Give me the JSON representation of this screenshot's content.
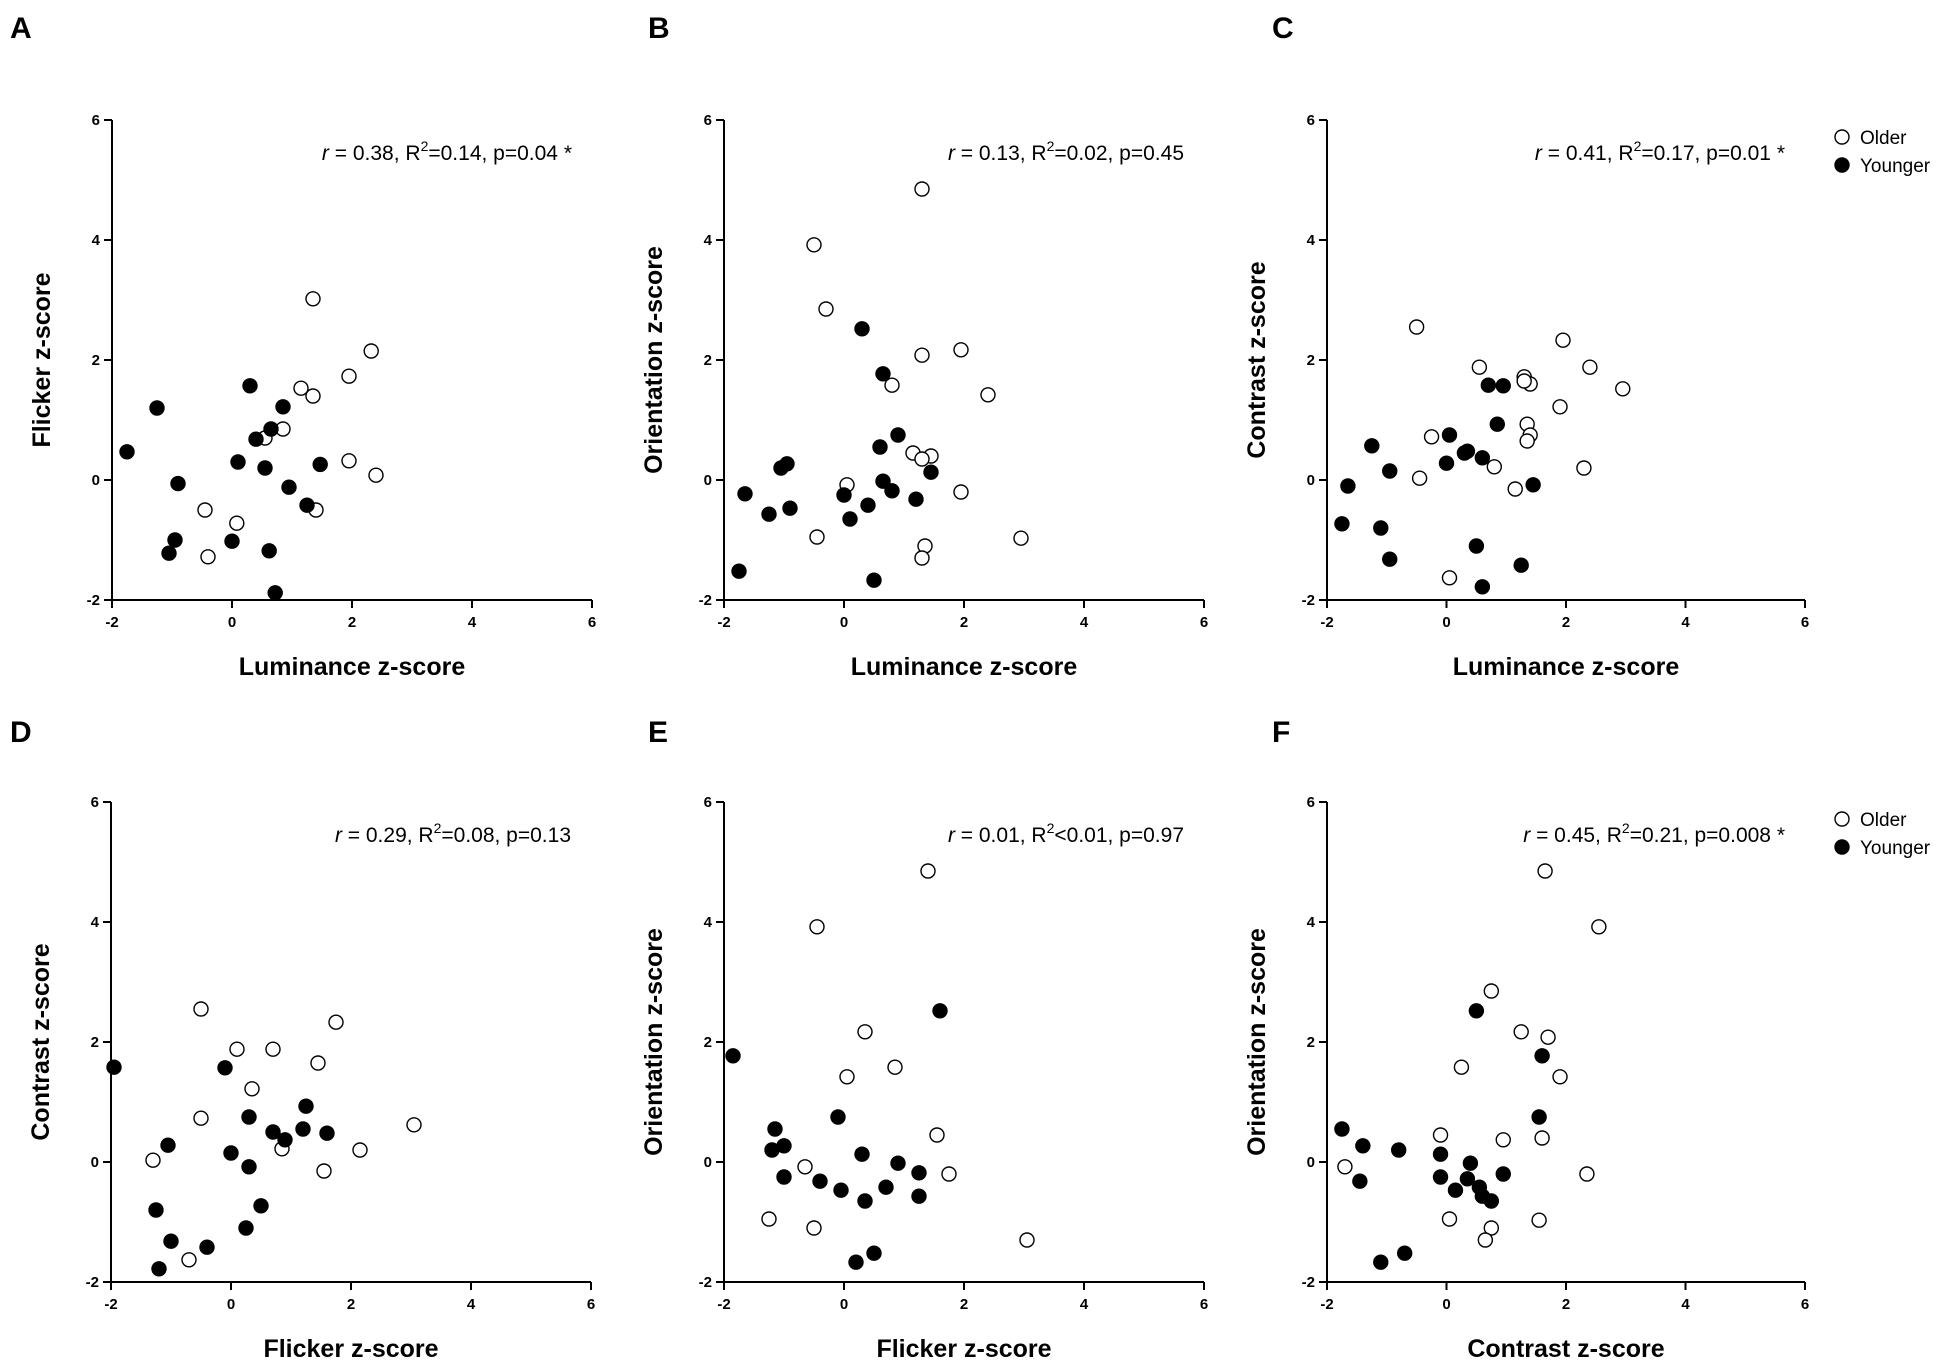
{
  "chart_data": [
    {
      "type": "scatter",
      "label": "A",
      "xlabel": "Luminance z-score",
      "ylabel": "Flicker z-score",
      "xlim": [
        -2,
        6
      ],
      "ylim": [
        -2,
        6
      ],
      "xticks": [
        -2,
        0,
        2,
        4,
        6
      ],
      "yticks": [
        -2,
        0,
        2,
        4,
        6
      ],
      "stats": {
        "r": "r",
        "text": " = 0.38, R",
        "sup": "2",
        "text2": "=0.14, p=0.04 *"
      },
      "legend": null,
      "series": [
        {
          "name": "Older",
          "points": [
            [
              1.35,
              3.02
            ],
            [
              2.32,
              2.15
            ],
            [
              1.95,
              1.73
            ],
            [
              1.15,
              1.53
            ],
            [
              1.35,
              1.4
            ],
            [
              0.85,
              0.85
            ],
            [
              0.55,
              0.7
            ],
            [
              1.95,
              0.32
            ],
            [
              2.4,
              0.08
            ],
            [
              -0.45,
              -0.5
            ],
            [
              0.08,
              -0.72
            ],
            [
              1.4,
              -0.5
            ],
            [
              -0.4,
              -1.28
            ]
          ]
        },
        {
          "name": "Younger",
          "points": [
            [
              -1.25,
              1.2
            ],
            [
              -1.75,
              0.47
            ],
            [
              0.3,
              1.57
            ],
            [
              0.85,
              1.22
            ],
            [
              0.65,
              0.85
            ],
            [
              0.4,
              0.68
            ],
            [
              0.1,
              0.3
            ],
            [
              0.55,
              0.2
            ],
            [
              1.47,
              0.26
            ],
            [
              -0.9,
              -0.06
            ],
            [
              0.95,
              -0.12
            ],
            [
              1.25,
              -0.42
            ],
            [
              -0.95,
              -1.0
            ],
            [
              0.0,
              -1.02
            ],
            [
              -1.05,
              -1.22
            ],
            [
              0.62,
              -1.18
            ],
            [
              0.72,
              -1.88
            ]
          ]
        }
      ]
    },
    {
      "type": "scatter",
      "label": "B",
      "xlabel": "Luminance z-score",
      "ylabel": "Orientation z-score",
      "xlim": [
        -2,
        6
      ],
      "ylim": [
        -2,
        6
      ],
      "xticks": [
        -2,
        0,
        2,
        4,
        6
      ],
      "yticks": [
        -2,
        0,
        2,
        4,
        6
      ],
      "stats": {
        "r": "r",
        "text": " = 0.13, R",
        "sup": "2",
        "text2": "=0.02, p=0.45"
      },
      "legend": null,
      "series": [
        {
          "name": "Older",
          "points": [
            [
              1.3,
              4.85
            ],
            [
              -0.5,
              3.92
            ],
            [
              -0.3,
              2.85
            ],
            [
              1.95,
              2.17
            ],
            [
              1.3,
              2.08
            ],
            [
              0.8,
              1.58
            ],
            [
              2.4,
              1.42
            ],
            [
              1.15,
              0.45
            ],
            [
              1.45,
              0.4
            ],
            [
              1.3,
              0.35
            ],
            [
              0.05,
              -0.08
            ],
            [
              1.95,
              -0.2
            ],
            [
              -0.45,
              -0.95
            ],
            [
              1.35,
              -1.1
            ],
            [
              1.3,
              -1.3
            ],
            [
              2.95,
              -0.97
            ]
          ]
        },
        {
          "name": "Younger",
          "points": [
            [
              0.3,
              2.52
            ],
            [
              0.65,
              1.77
            ],
            [
              0.9,
              0.75
            ],
            [
              0.6,
              0.55
            ],
            [
              -0.95,
              0.27
            ],
            [
              -1.05,
              0.2
            ],
            [
              0.65,
              -0.02
            ],
            [
              0.8,
              -0.18
            ],
            [
              0.0,
              -0.25
            ],
            [
              -1.65,
              -0.23
            ],
            [
              0.4,
              -0.42
            ],
            [
              1.2,
              -0.32
            ],
            [
              1.45,
              0.13
            ],
            [
              -0.9,
              -0.47
            ],
            [
              -1.25,
              -0.57
            ],
            [
              0.1,
              -0.65
            ],
            [
              -1.75,
              -1.52
            ],
            [
              0.5,
              -1.67
            ]
          ]
        }
      ]
    },
    {
      "type": "scatter",
      "label": "C",
      "xlabel": "Luminance z-score",
      "ylabel": "Contrast z-score",
      "xlim": [
        -2,
        6
      ],
      "ylim": [
        -2,
        6
      ],
      "xticks": [
        -2,
        0,
        2,
        4,
        6
      ],
      "yticks": [
        -2,
        0,
        2,
        4,
        6
      ],
      "stats": {
        "r": "r",
        "text": " = 0.41, R",
        "sup": "2",
        "text2": "=0.17, p=0.01 *"
      },
      "legend": [
        "Older",
        "Younger"
      ],
      "series": [
        {
          "name": "Older",
          "points": [
            [
              -0.5,
              2.55
            ],
            [
              1.95,
              2.33
            ],
            [
              2.4,
              1.88
            ],
            [
              0.55,
              1.88
            ],
            [
              1.3,
              1.72
            ],
            [
              1.4,
              1.6
            ],
            [
              1.3,
              1.65
            ],
            [
              2.95,
              1.52
            ],
            [
              1.9,
              1.22
            ],
            [
              1.35,
              0.93
            ],
            [
              1.4,
              0.75
            ],
            [
              1.35,
              0.65
            ],
            [
              -0.25,
              0.72
            ],
            [
              -0.45,
              0.03
            ],
            [
              0.8,
              0.22
            ],
            [
              2.3,
              0.2
            ],
            [
              1.15,
              -0.15
            ],
            [
              0.05,
              -1.63
            ]
          ]
        },
        {
          "name": "Younger",
          "points": [
            [
              0.7,
              1.58
            ],
            [
              0.95,
              1.57
            ],
            [
              0.85,
              0.93
            ],
            [
              0.05,
              0.75
            ],
            [
              -1.25,
              0.57
            ],
            [
              0.35,
              0.48
            ],
            [
              0.3,
              0.45
            ],
            [
              0.6,
              0.37
            ],
            [
              0.0,
              0.28
            ],
            [
              -0.95,
              0.15
            ],
            [
              -1.65,
              -0.1
            ],
            [
              1.45,
              -0.08
            ],
            [
              -1.75,
              -0.73
            ],
            [
              -1.1,
              -0.8
            ],
            [
              -0.95,
              -1.32
            ],
            [
              0.5,
              -1.1
            ],
            [
              1.25,
              -1.42
            ],
            [
              0.6,
              -1.78
            ]
          ]
        }
      ]
    },
    {
      "type": "scatter",
      "label": "D",
      "xlabel": "Flicker z-score",
      "ylabel": "Contrast z-score",
      "xlim": [
        -2,
        6
      ],
      "ylim": [
        -2,
        6
      ],
      "xticks": [
        -2,
        0,
        2,
        4,
        6
      ],
      "yticks": [
        -2,
        0,
        2,
        4,
        6
      ],
      "stats": {
        "r": "r",
        "text": " = 0.29, R",
        "sup": "2",
        "text2": "=0.08, p=0.13"
      },
      "legend": null,
      "series": [
        {
          "name": "Older",
          "points": [
            [
              -0.5,
              2.55
            ],
            [
              1.75,
              2.33
            ],
            [
              0.1,
              1.88
            ],
            [
              0.7,
              1.88
            ],
            [
              1.45,
              1.65
            ],
            [
              0.35,
              1.22
            ],
            [
              -0.5,
              0.73
            ],
            [
              3.05,
              0.62
            ],
            [
              2.15,
              0.2
            ],
            [
              0.85,
              0.22
            ],
            [
              1.55,
              -0.15
            ],
            [
              -1.3,
              0.03
            ],
            [
              -0.7,
              -1.63
            ]
          ]
        },
        {
          "name": "Younger",
          "points": [
            [
              -1.95,
              1.58
            ],
            [
              -0.1,
              1.57
            ],
            [
              1.25,
              0.93
            ],
            [
              0.3,
              0.75
            ],
            [
              0.7,
              0.5
            ],
            [
              0.9,
              0.37
            ],
            [
              1.2,
              0.55
            ],
            [
              1.6,
              0.48
            ],
            [
              -1.05,
              0.28
            ],
            [
              0.0,
              0.15
            ],
            [
              0.3,
              -0.08
            ],
            [
              0.5,
              -0.73
            ],
            [
              -1.25,
              -0.8
            ],
            [
              -1.0,
              -1.32
            ],
            [
              -0.4,
              -1.42
            ],
            [
              0.25,
              -1.1
            ],
            [
              -1.2,
              -1.78
            ]
          ]
        }
      ]
    },
    {
      "type": "scatter",
      "label": "E",
      "xlabel": "Flicker z-score",
      "ylabel": "Orientation z-score",
      "xlim": [
        -2,
        6
      ],
      "ylim": [
        -2,
        6
      ],
      "xticks": [
        -2,
        0,
        2,
        4,
        6
      ],
      "yticks": [
        -2,
        0,
        2,
        4,
        6
      ],
      "stats": {
        "r": "r",
        "text": " = 0.01, R",
        "sup": "2",
        "text2": "<0.01, p=0.97"
      },
      "legend": null,
      "series": [
        {
          "name": "Older",
          "points": [
            [
              1.4,
              4.85
            ],
            [
              -0.45,
              3.92
            ],
            [
              0.35,
              2.17
            ],
            [
              0.05,
              1.42
            ],
            [
              0.85,
              1.58
            ],
            [
              1.55,
              0.45
            ],
            [
              -0.65,
              -0.08
            ],
            [
              1.75,
              -0.2
            ],
            [
              -1.25,
              -0.95
            ],
            [
              -0.5,
              -1.1
            ],
            [
              3.05,
              -1.3
            ]
          ]
        },
        {
          "name": "Younger",
          "points": [
            [
              -1.85,
              1.77
            ],
            [
              1.6,
              2.52
            ],
            [
              -0.1,
              0.75
            ],
            [
              -1.15,
              0.55
            ],
            [
              -1.0,
              0.27
            ],
            [
              -1.2,
              0.2
            ],
            [
              0.3,
              0.13
            ],
            [
              0.9,
              -0.02
            ],
            [
              -1.0,
              -0.25
            ],
            [
              -0.4,
              -0.32
            ],
            [
              1.25,
              -0.18
            ],
            [
              0.7,
              -0.42
            ],
            [
              -0.05,
              -0.47
            ],
            [
              1.25,
              -0.57
            ],
            [
              0.35,
              -0.65
            ],
            [
              0.5,
              -1.52
            ],
            [
              0.2,
              -1.67
            ]
          ]
        }
      ]
    },
    {
      "type": "scatter",
      "label": "F",
      "xlabel": "Contrast z-score",
      "ylabel": "Orientation z-score",
      "xlim": [
        -2,
        6
      ],
      "ylim": [
        -2,
        6
      ],
      "xticks": [
        -2,
        0,
        2,
        4,
        6
      ],
      "yticks": [
        -2,
        0,
        2,
        4,
        6
      ],
      "stats": {
        "r": "r",
        "text": " = 0.45, R",
        "sup": "2",
        "text2": "=0.21, p=0.008 *"
      },
      "legend": [
        "Older",
        "Younger"
      ],
      "series": [
        {
          "name": "Older",
          "points": [
            [
              1.65,
              4.85
            ],
            [
              2.55,
              3.92
            ],
            [
              0.75,
              2.85
            ],
            [
              1.25,
              2.17
            ],
            [
              1.7,
              2.08
            ],
            [
              0.25,
              1.58
            ],
            [
              1.9,
              1.42
            ],
            [
              -0.1,
              0.45
            ],
            [
              0.95,
              0.37
            ],
            [
              1.6,
              0.4
            ],
            [
              -1.7,
              -0.08
            ],
            [
              2.35,
              -0.2
            ],
            [
              0.05,
              -0.95
            ],
            [
              1.55,
              -0.97
            ],
            [
              0.75,
              -1.1
            ],
            [
              0.65,
              -1.3
            ]
          ]
        },
        {
          "name": "Younger",
          "points": [
            [
              0.5,
              2.52
            ],
            [
              1.6,
              1.77
            ],
            [
              1.55,
              0.75
            ],
            [
              -1.75,
              0.55
            ],
            [
              -1.4,
              0.27
            ],
            [
              -0.8,
              0.2
            ],
            [
              -0.1,
              0.13
            ],
            [
              0.4,
              -0.02
            ],
            [
              -1.45,
              -0.32
            ],
            [
              -0.1,
              -0.25
            ],
            [
              0.35,
              -0.28
            ],
            [
              0.95,
              -0.2
            ],
            [
              0.15,
              -0.47
            ],
            [
              0.55,
              -0.42
            ],
            [
              0.6,
              -0.57
            ],
            [
              0.75,
              -0.65
            ],
            [
              -0.7,
              -1.52
            ],
            [
              -1.1,
              -1.67
            ]
          ]
        }
      ]
    }
  ]
}
